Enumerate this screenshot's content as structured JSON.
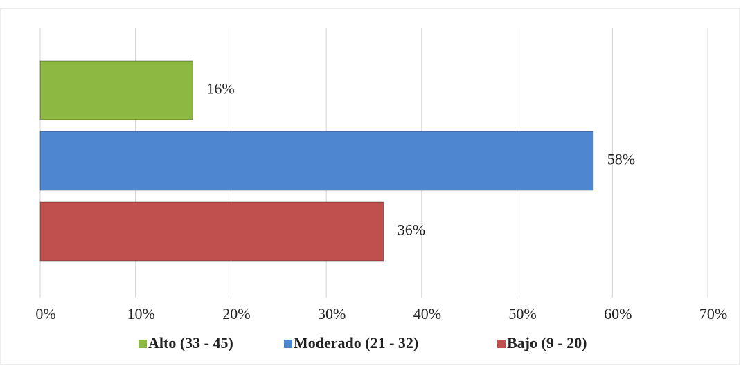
{
  "chart_data": {
    "type": "barh",
    "series": [
      {
        "name": "Alto (33 - 45)",
        "color": "#8db842",
        "values": [
          16
        ],
        "value_labels": [
          "16%"
        ]
      },
      {
        "name": "Moderado (21 - 32)",
        "color": "#4f86d0",
        "values": [
          58
        ],
        "value_labels": [
          "58%"
        ]
      },
      {
        "name": "Bajo (9 - 20)",
        "color": "#c0504d",
        "values": [
          36
        ],
        "value_labels": [
          "36%"
        ]
      }
    ],
    "xlim": [
      0,
      70
    ],
    "xticks": [
      {
        "value": 0,
        "label": "0%"
      },
      {
        "value": 10,
        "label": "10%"
      },
      {
        "value": 20,
        "label": "20%"
      },
      {
        "value": 30,
        "label": "30%"
      },
      {
        "value": 40,
        "label": "40%"
      },
      {
        "value": 50,
        "label": "50%"
      },
      {
        "value": 60,
        "label": "60%"
      },
      {
        "value": 70,
        "label": "70%"
      }
    ],
    "grid": true,
    "legend": "bottom"
  }
}
